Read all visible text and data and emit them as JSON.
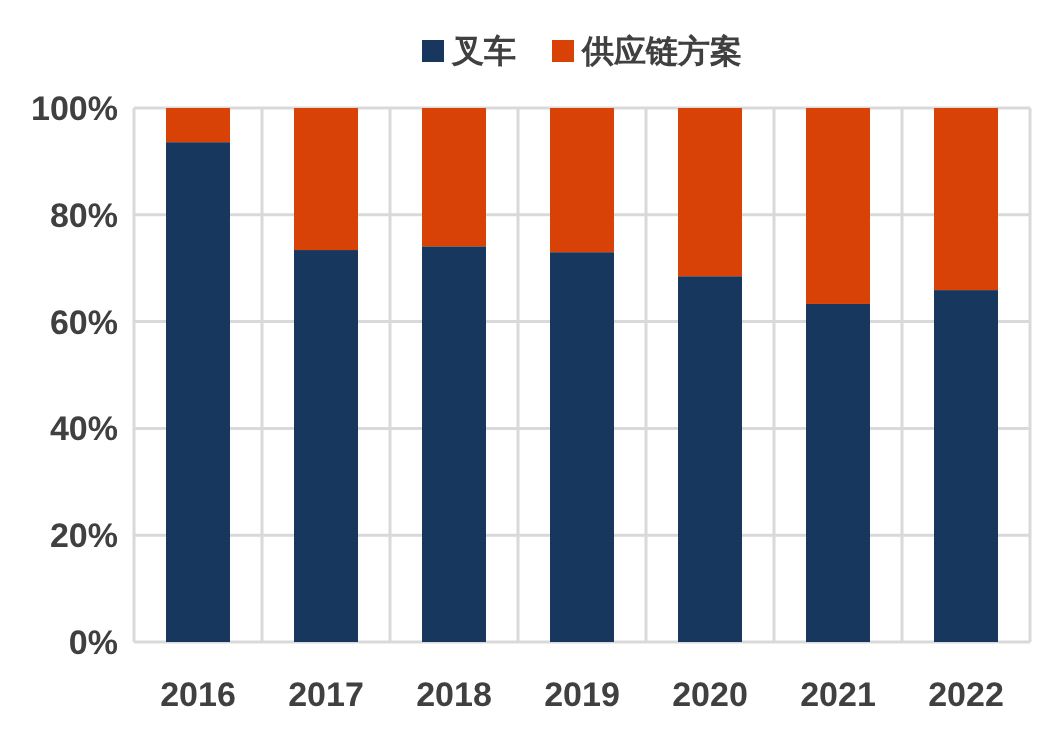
{
  "chart_data": {
    "type": "bar",
    "stacked": true,
    "categories": [
      "2016",
      "2017",
      "2018",
      "2019",
      "2020",
      "2021",
      "2022"
    ],
    "series": [
      {
        "name": "叉车",
        "color": "#17375e",
        "values": [
          93.6,
          73.4,
          74.1,
          73.0,
          68.5,
          63.3,
          65.9
        ]
      },
      {
        "name": "供应链方案",
        "color": "#d94206",
        "values": [
          6.4,
          26.6,
          25.9,
          27.0,
          31.5,
          36.7,
          34.1
        ]
      }
    ],
    "ylim": [
      0,
      100
    ],
    "yticks": [
      {
        "value": 0,
        "label": "0%"
      },
      {
        "value": 20,
        "label": "20%"
      },
      {
        "value": 40,
        "label": "40%"
      },
      {
        "value": 60,
        "label": "60%"
      },
      {
        "value": 80,
        "label": "80%"
      },
      {
        "value": 100,
        "label": "100%"
      }
    ],
    "grid": true,
    "legend": "top"
  }
}
